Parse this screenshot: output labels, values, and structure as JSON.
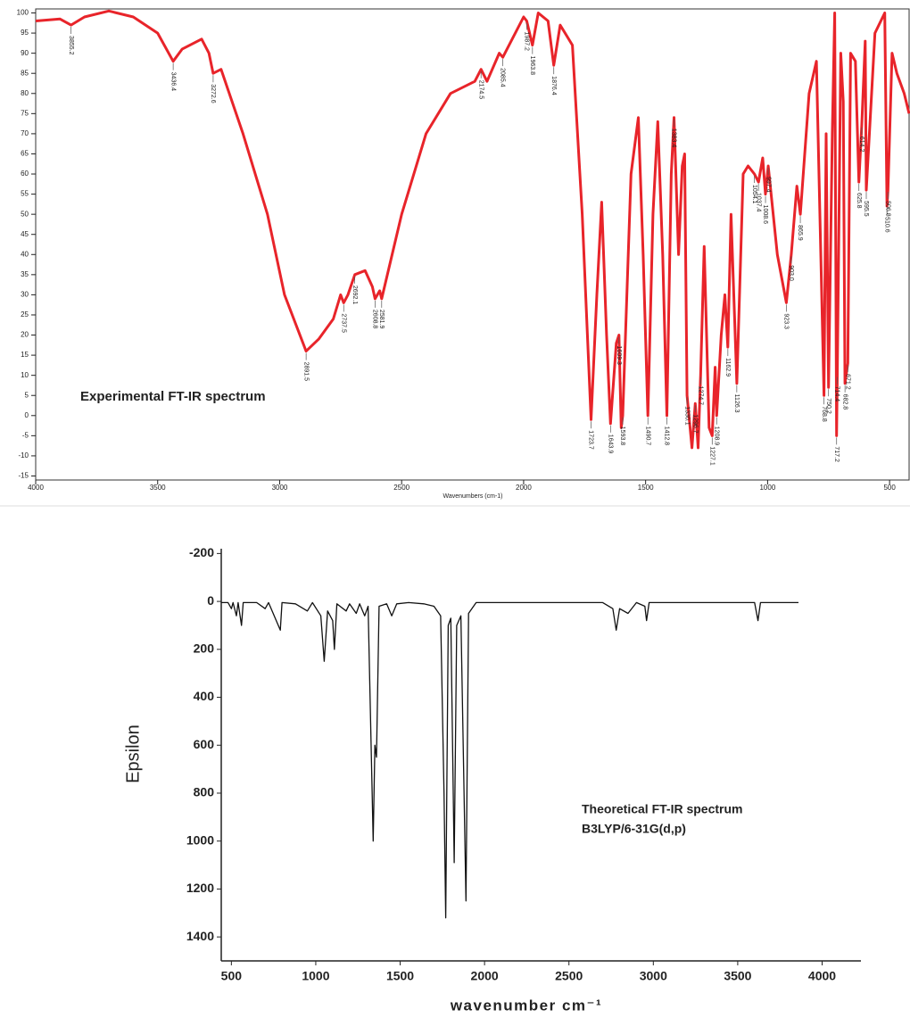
{
  "chart_data": [
    {
      "type": "line",
      "x_label": "Wavenumbers (cm-1)",
      "color": "#e8242a",
      "annotations": [
        "Experimental FT-IR spectrum"
      ],
      "xlim": [
        4000,
        420
      ],
      "ylim": [
        -16,
        101
      ],
      "xticks": [
        4000,
        3500,
        3000,
        2500,
        2000,
        1500,
        1000,
        500
      ],
      "yticks": [
        100,
        95,
        90,
        85,
        80,
        75,
        70,
        65,
        60,
        55,
        50,
        45,
        40,
        35,
        30,
        25,
        20,
        15,
        10,
        5,
        0,
        -5,
        -10,
        -15
      ],
      "x": [
        4000,
        3900,
        3855.2,
        3800,
        3700,
        3600,
        3500,
        3436.4,
        3400,
        3320,
        3290,
        3272.6,
        3240,
        3150,
        3050,
        2980,
        2891.5,
        2840,
        2780,
        2750,
        2737.5,
        2720,
        2692.1,
        2650,
        2620,
        2608.8,
        2590,
        2581.9,
        2500,
        2400,
        2300,
        2200,
        2174.5,
        2150,
        2100,
        2085.4,
        2000,
        1987.2,
        1963.8,
        1940,
        1900,
        1876.4,
        1850,
        1800,
        1760,
        1723.7,
        1700,
        1680,
        1660,
        1643.9,
        1620,
        1609.3,
        1600,
        1593.8,
        1560,
        1530,
        1510,
        1490.7,
        1470,
        1450,
        1430,
        1412.8,
        1395,
        1383.4,
        1365,
        1350,
        1340,
        1330.1,
        1310,
        1296.7,
        1285,
        1274.7,
        1260,
        1240,
        1227.1,
        1215,
        1208.9,
        1190,
        1175,
        1162.9,
        1150,
        1126.3,
        1100,
        1080,
        1054.1,
        1037.4,
        1020,
        1008.6,
        997.4,
        960,
        923.3,
        903,
        880,
        865.9,
        830,
        800,
        768.8,
        760,
        750.2,
        735,
        725,
        717.2,
        714.4,
        700,
        690,
        682.8,
        671.2,
        660,
        640,
        625.8,
        614.2,
        600,
        595.5,
        560,
        520,
        510.6,
        506.8,
        490,
        470,
        440,
        420
      ],
      "values": [
        98,
        98.5,
        97,
        99,
        100.5,
        99,
        95,
        88,
        91,
        93.5,
        90,
        85,
        86,
        70,
        50,
        30,
        16,
        19,
        24,
        30,
        28,
        30,
        35,
        36,
        32,
        29,
        31,
        29,
        50,
        70,
        80,
        83,
        86,
        83,
        90,
        89,
        99,
        98,
        92,
        100,
        98,
        87,
        97,
        92,
        50,
        -1,
        30,
        53,
        20,
        -2,
        18,
        20,
        -3,
        0,
        60,
        74,
        40,
        0,
        50,
        73,
        40,
        0,
        60,
        74,
        40,
        62,
        65,
        5,
        -8,
        3,
        -8,
        10,
        42,
        -3,
        -5,
        12,
        0,
        20,
        30,
        17,
        50,
        8,
        60,
        62,
        60,
        58,
        64,
        55,
        62,
        40,
        28,
        40,
        57,
        50,
        80,
        88,
        5,
        70,
        7,
        70,
        100,
        -5,
        10,
        90,
        78,
        8,
        13,
        90,
        88,
        58,
        72,
        93,
        56,
        95,
        100,
        52,
        56,
        90,
        85,
        80,
        75
      ],
      "peaks": [
        {
          "x": 3855.2,
          "y": 97
        },
        {
          "x": 3436.4,
          "y": 88
        },
        {
          "x": 3272.6,
          "y": 85
        },
        {
          "x": 2891.5,
          "y": 16
        },
        {
          "x": 2737.5,
          "y": 28
        },
        {
          "x": 2692.1,
          "y": 35
        },
        {
          "x": 2608.8,
          "y": 29
        },
        {
          "x": 2581.9,
          "y": 29
        },
        {
          "x": 2174.5,
          "y": 86
        },
        {
          "x": 2085.4,
          "y": 89
        },
        {
          "x": 1987.2,
          "y": 98
        },
        {
          "x": 1963.8,
          "y": 92
        },
        {
          "x": 1876.4,
          "y": 87
        },
        {
          "x": 1723.7,
          "y": -1
        },
        {
          "x": 1643.9,
          "y": -2
        },
        {
          "x": 1609.3,
          "y": 20
        },
        {
          "x": 1593.8,
          "y": 0
        },
        {
          "x": 1490.7,
          "y": 0
        },
        {
          "x": 1412.8,
          "y": 0
        },
        {
          "x": 1383.4,
          "y": 74
        },
        {
          "x": 1330.1,
          "y": 5
        },
        {
          "x": 1296.7,
          "y": 3
        },
        {
          "x": 1274.7,
          "y": 10
        },
        {
          "x": 1227.1,
          "y": -5
        },
        {
          "x": 1208.9,
          "y": 0
        },
        {
          "x": 1162.9,
          "y": 17
        },
        {
          "x": 1126.3,
          "y": 8
        },
        {
          "x": 1054.1,
          "y": 60
        },
        {
          "x": 1037.4,
          "y": 58
        },
        {
          "x": 1008.6,
          "y": 55
        },
        {
          "x": 997.4,
          "y": 62
        },
        {
          "x": 923.3,
          "y": 28
        },
        {
          "x": 903,
          "y": 40,
          "label": "903.0"
        },
        {
          "x": 865.9,
          "y": 50
        },
        {
          "x": 768.8,
          "y": 5
        },
        {
          "x": 750.2,
          "y": 7
        },
        {
          "x": 717.2,
          "y": -5
        },
        {
          "x": 714.4,
          "y": 10
        },
        {
          "x": 682.8,
          "y": 8
        },
        {
          "x": 671.2,
          "y": 13
        },
        {
          "x": 625.8,
          "y": 58
        },
        {
          "x": 614.2,
          "y": 72
        },
        {
          "x": 595.5,
          "y": 56
        },
        {
          "x": 510.6,
          "y": 52
        },
        {
          "x": 506.8,
          "y": 56
        }
      ]
    },
    {
      "type": "line",
      "x_label": "wavenumber cm⁻¹",
      "y_label": "Epsilon",
      "color": "#111111",
      "annotations": [
        "Theoretical FT-IR spectrum",
        "B3LYP/6-31G(d,p)"
      ],
      "xlim": [
        440,
        4230
      ],
      "ylim": [
        1500,
        -220
      ],
      "xticks": [
        500,
        1000,
        1500,
        2000,
        2500,
        3000,
        3500,
        4000
      ],
      "yticks": [
        -200,
        0,
        200,
        400,
        600,
        800,
        1000,
        1200,
        1400
      ],
      "x": [
        440,
        480,
        500,
        510,
        530,
        540,
        560,
        570,
        650,
        700,
        720,
        790,
        800,
        880,
        950,
        980,
        1030,
        1050,
        1070,
        1100,
        1110,
        1125,
        1180,
        1200,
        1240,
        1260,
        1290,
        1310,
        1340,
        1350,
        1360,
        1375,
        1420,
        1450,
        1480,
        1550,
        1640,
        1700,
        1740,
        1760,
        1770,
        1785,
        1800,
        1820,
        1835,
        1860,
        1890,
        1905,
        1950,
        2700,
        2760,
        2780,
        2800,
        2850,
        2900,
        2950,
        2960,
        2975,
        3600,
        3620,
        3635,
        3860
      ],
      "values": [
        5,
        5,
        30,
        5,
        60,
        5,
        100,
        5,
        5,
        30,
        5,
        120,
        5,
        10,
        40,
        5,
        60,
        250,
        40,
        80,
        200,
        10,
        40,
        10,
        50,
        10,
        60,
        20,
        1000,
        600,
        650,
        20,
        10,
        60,
        10,
        5,
        10,
        20,
        60,
        800,
        1320,
        100,
        70,
        1090,
        100,
        60,
        1250,
        50,
        5,
        5,
        30,
        120,
        30,
        50,
        5,
        20,
        80,
        5,
        5,
        80,
        5,
        5
      ]
    }
  ]
}
